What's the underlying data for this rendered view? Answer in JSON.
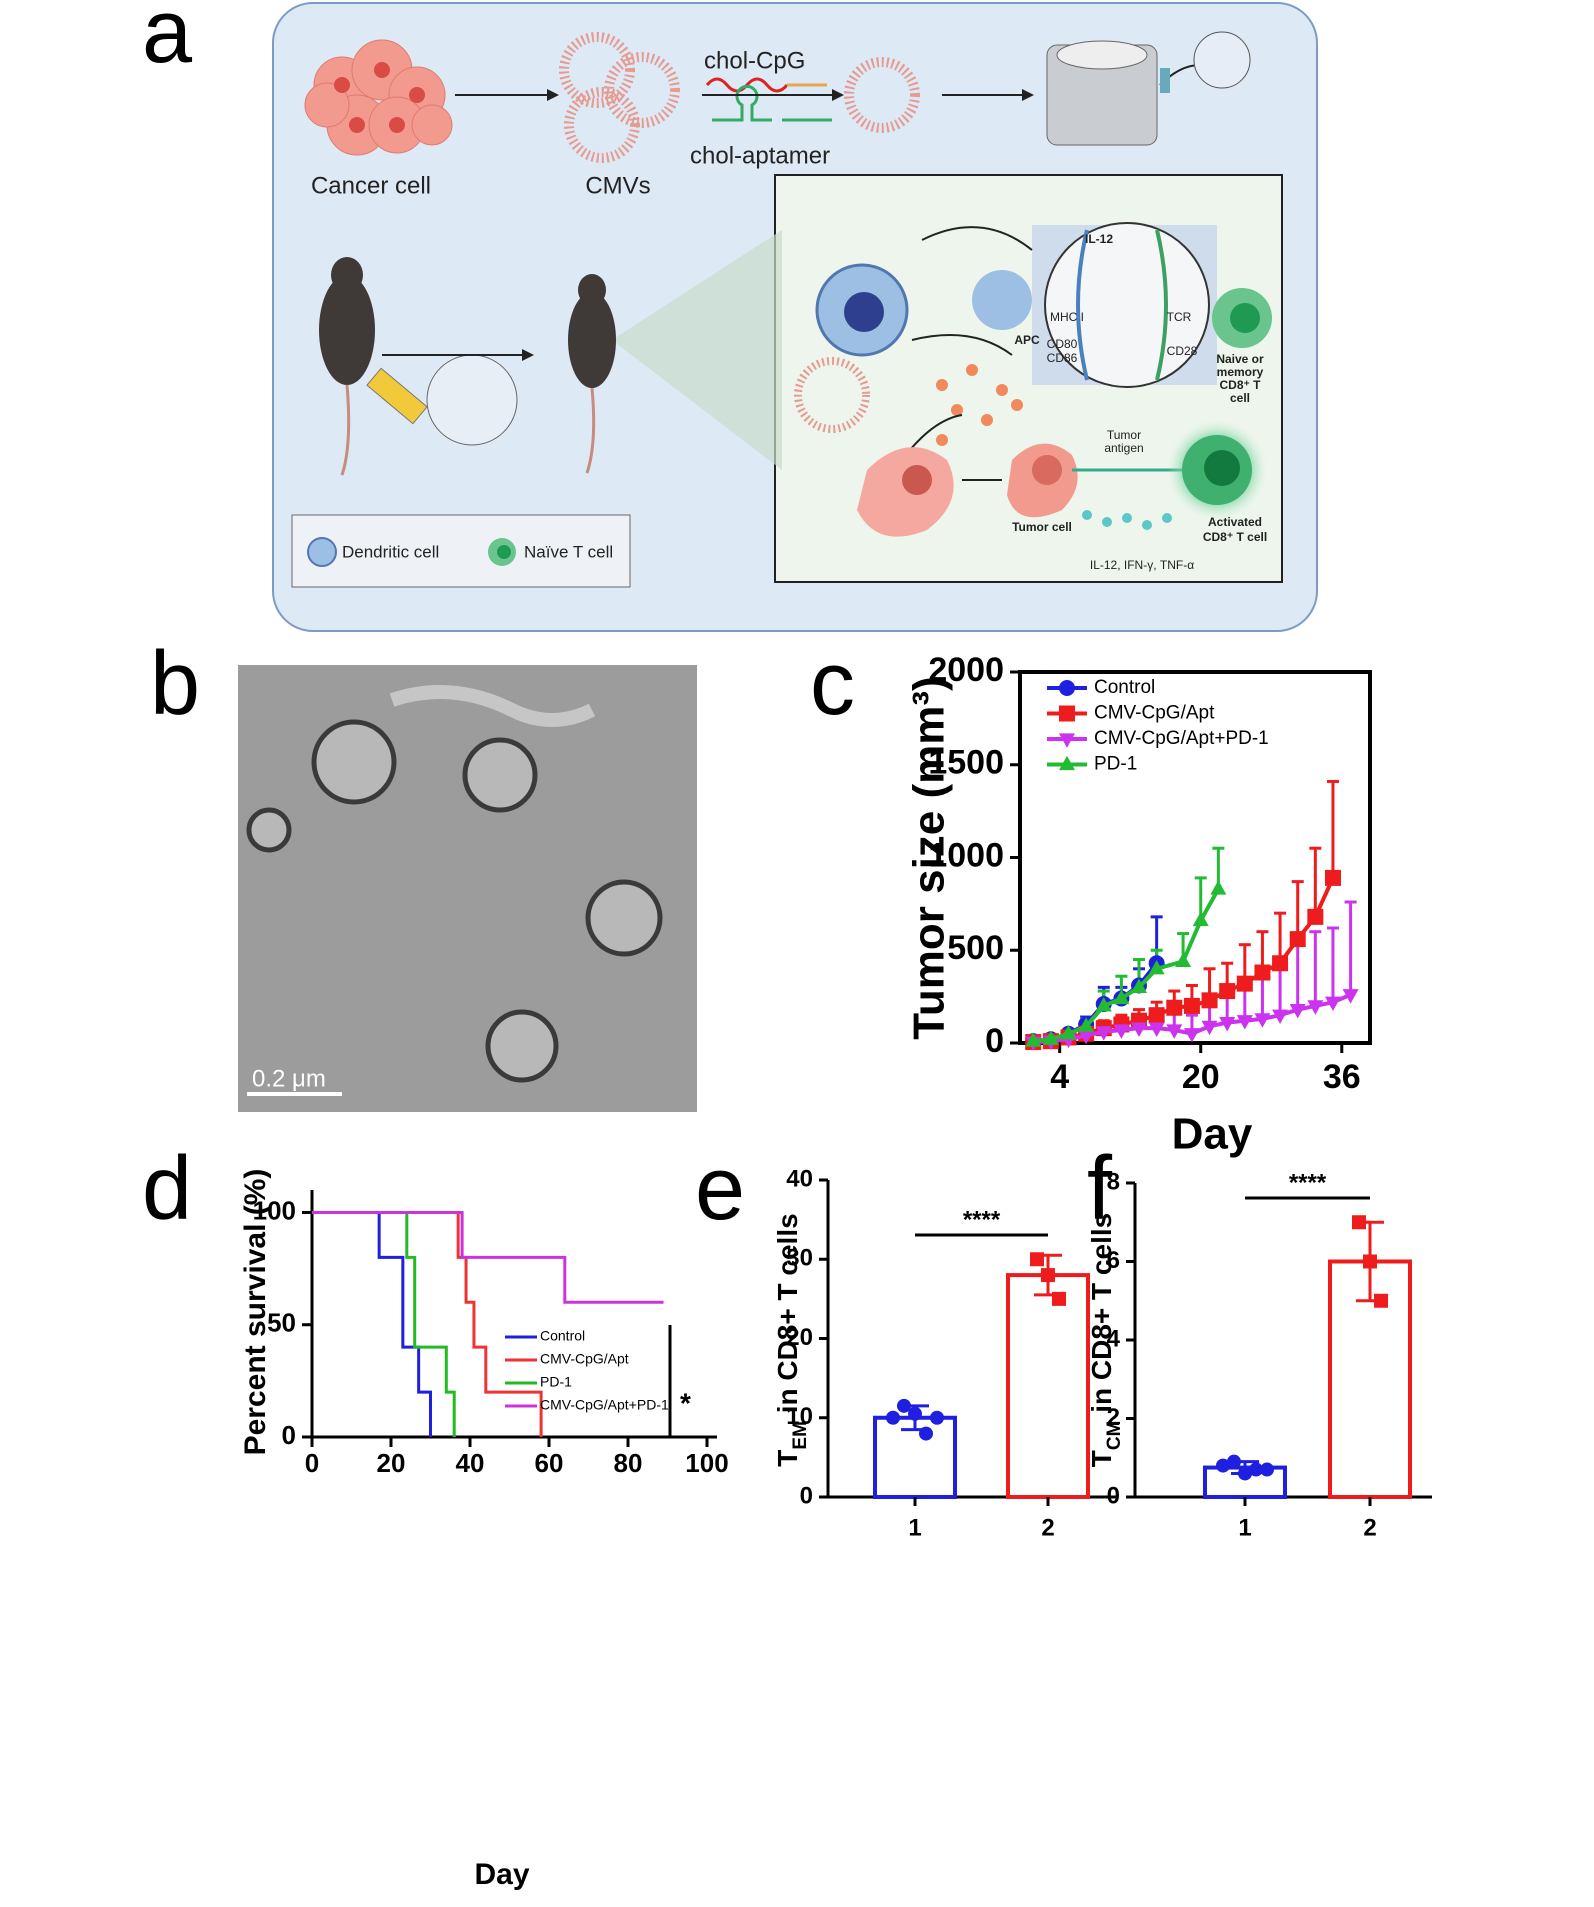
{
  "panel_labels": [
    "a",
    "b",
    "c",
    "d",
    "e",
    "f"
  ],
  "diagram": {
    "cancer_cell": "Cancer cell",
    "cmvs": "CMVs",
    "chol_cpg": "chol-CpG",
    "chol_aptamer": "chol-aptamer",
    "il12": "IL-12",
    "mhc": "MHC I",
    "tcr": "TCR",
    "cd80": "CD80",
    "cd86": "CD86",
    "cd28": "CD28",
    "apc": "APC",
    "naive_cd8": [
      "Naive or",
      "memory",
      "CD8⁺ T",
      "cell"
    ],
    "tumor_antigen": [
      "Tumor",
      "antigen"
    ],
    "tumor_cell": "Tumor cell",
    "activated": [
      "Activated",
      "CD8⁺ T cell"
    ],
    "cytokines": "IL-12, IFN-γ, TNF-α",
    "legend_dc": "Dendritic cell",
    "legend_t": "Naïve T cell"
  },
  "micrograph": {
    "scale_bar": "0.2 μm"
  },
  "chart_data": [
    {
      "type": "line",
      "ylabel": "Tumor size (mm³)",
      "xlabel": "Day",
      "xlim": [
        -0.5,
        39.2
      ],
      "xticks": [
        4,
        20,
        36
      ],
      "ylim": [
        0,
        2000
      ],
      "yticks": [
        0,
        500,
        1000,
        1500,
        2000
      ],
      "series": [
        {
          "name": "Control",
          "color": "#1f1fe0",
          "marker": "circle",
          "x": [
            1,
            3,
            5,
            7,
            9,
            11,
            13,
            15
          ],
          "values": [
            10,
            20,
            50,
            100,
            210,
            240,
            310,
            430
          ],
          "errors": [
            5,
            10,
            20,
            40,
            90,
            60,
            90,
            250
          ]
        },
        {
          "name": "CMV-CpG/Apt",
          "color": "#ee1c1c",
          "marker": "square",
          "x": [
            1,
            3,
            5,
            7,
            9,
            11,
            13,
            15,
            17,
            19,
            21,
            23,
            25,
            27,
            29,
            31,
            33,
            35
          ],
          "values": [
            5,
            10,
            30,
            50,
            80,
            100,
            120,
            150,
            190,
            200,
            230,
            280,
            320,
            380,
            430,
            560,
            680,
            890
          ],
          "errors": [
            5,
            10,
            20,
            30,
            40,
            50,
            60,
            70,
            90,
            110,
            170,
            150,
            210,
            220,
            270,
            310,
            370,
            520
          ]
        },
        {
          "name": "CMV-CpG/Apt+PD-1",
          "color": "#cc33ee",
          "marker": "triangle-down",
          "x": [
            1,
            3,
            5,
            7,
            9,
            11,
            13,
            15,
            17,
            19,
            21,
            23,
            25,
            27,
            29,
            31,
            33,
            35,
            37
          ],
          "values": [
            5,
            10,
            20,
            40,
            60,
            70,
            80,
            80,
            70,
            50,
            90,
            110,
            120,
            130,
            150,
            180,
            200,
            220,
            260
          ],
          "errors": [
            5,
            10,
            20,
            30,
            40,
            60,
            70,
            80,
            90,
            100,
            120,
            150,
            200,
            250,
            300,
            350,
            400,
            400,
            500
          ]
        },
        {
          "name": "PD-1",
          "color": "#22bb33",
          "marker": "triangle-up",
          "x": [
            1,
            3,
            5,
            7,
            9,
            11,
            13,
            15,
            18,
            20,
            22
          ],
          "values": [
            10,
            20,
            50,
            90,
            200,
            240,
            300,
            400,
            440,
            660,
            830
          ],
          "errors": [
            5,
            10,
            20,
            40,
            80,
            120,
            150,
            100,
            150,
            230,
            220
          ]
        }
      ]
    },
    {
      "type": "step",
      "ylabel": "Percent survival (%)",
      "xlabel": "Day",
      "xlim": [
        0,
        100
      ],
      "xticks": [
        0,
        20,
        40,
        60,
        80,
        100
      ],
      "ylim": [
        0,
        110
      ],
      "yticks": [
        0,
        50,
        100
      ],
      "annotation": "*",
      "series": [
        {
          "name": "Control",
          "color": "#1f1fe0",
          "x": [
            0,
            17,
            23,
            27,
            30
          ],
          "y": [
            100,
            80,
            40,
            20,
            0
          ]
        },
        {
          "name": "CMV-CpG/Apt",
          "color": "#ee3333",
          "x": [
            0,
            37,
            39,
            41,
            44,
            58
          ],
          "y": [
            100,
            80,
            60,
            40,
            20,
            0
          ]
        },
        {
          "name": "PD-1",
          "color": "#22bb22",
          "x": [
            0,
            24,
            26,
            34,
            36
          ],
          "y": [
            100,
            80,
            40,
            20,
            0
          ]
        },
        {
          "name": "CMV-CpG/Apt+PD-1",
          "color": "#cc33dd",
          "x": [
            0,
            38,
            64,
            89
          ],
          "y": [
            100,
            80,
            60,
            60
          ]
        }
      ]
    },
    {
      "type": "bar",
      "ylabel": [
        "T",
        "EM",
        " in CD8+ T cells"
      ],
      "categories": [
        "1",
        "2"
      ],
      "colors": [
        "#1f1fe0",
        "#ee1c1c"
      ],
      "point_markers": [
        "circle",
        "square"
      ],
      "ylim": [
        0,
        40
      ],
      "yticks": [
        0,
        10,
        20,
        30,
        40
      ],
      "values": [
        10,
        28
      ],
      "errors": [
        1.5,
        2.5
      ],
      "points": [
        [
          10,
          11.5,
          10.5,
          8,
          10
        ],
        [
          30,
          28,
          25
        ]
      ],
      "annotation": "****"
    },
    {
      "type": "bar",
      "ylabel": [
        "T",
        "CM",
        " in CD8+ T cells"
      ],
      "categories": [
        "1",
        "2"
      ],
      "colors": [
        "#1f1fe0",
        "#ee1c1c"
      ],
      "point_markers": [
        "circle",
        "square"
      ],
      "ylim": [
        0,
        8
      ],
      "yticks": [
        0,
        2,
        4,
        6,
        8
      ],
      "values": [
        0.75,
        6
      ],
      "errors": [
        0.15,
        1
      ],
      "points": [
        [
          0.8,
          0.9,
          0.6,
          0.7,
          0.7
        ],
        [
          7,
          6,
          5
        ]
      ],
      "annotation": "****"
    }
  ]
}
